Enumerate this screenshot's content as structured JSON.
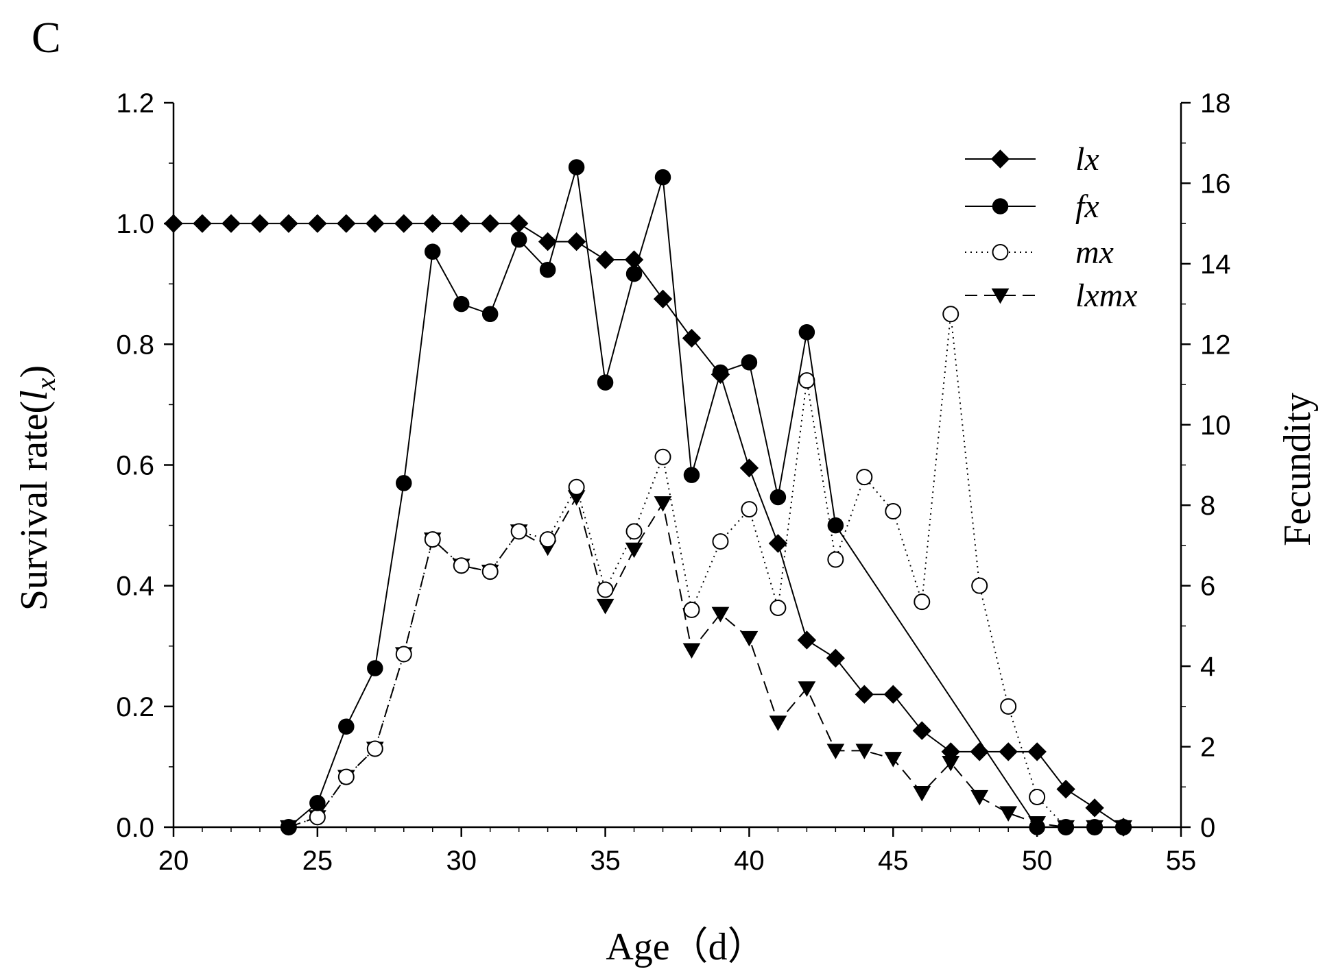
{
  "panel_label": "C",
  "chart_data": {
    "type": "line",
    "xlabel": "Age（d）",
    "ylabel_left": "Survival rate(",
    "ylabel_left_symbol": "l",
    "ylabel_left_sub": "x",
    "ylabel_left_close": ")",
    "ylabel_right": "Fecundity",
    "xlim": [
      20,
      55
    ],
    "ylim_left": [
      0,
      1.2
    ],
    "ylim_right": [
      0,
      18
    ],
    "xticks": [
      20,
      25,
      30,
      35,
      40,
      45,
      50,
      55
    ],
    "xtick_labels": [
      "20",
      "25",
      "30",
      "35",
      "40",
      "45",
      "50",
      "55"
    ],
    "yticks_left": [
      0,
      0.2,
      0.4,
      0.6,
      0.8,
      1.0,
      1.2
    ],
    "ytick_labels_left": [
      "0.0",
      "0.2",
      "0.4",
      "0.6",
      "0.8",
      "1.0",
      "1.2"
    ],
    "yticks_right": [
      0,
      2,
      4,
      6,
      8,
      10,
      12,
      14,
      16,
      18
    ],
    "ytick_labels_right": [
      "0",
      "2",
      "4",
      "6",
      "8",
      "10",
      "12",
      "14",
      "16",
      "18"
    ],
    "legend_position": "top-right",
    "series": [
      {
        "name": "lx",
        "axis": "left",
        "marker": "diamond",
        "line": "solid",
        "x": [
          20,
          21,
          22,
          23,
          24,
          25,
          26,
          27,
          28,
          29,
          30,
          31,
          32,
          33,
          34,
          35,
          36,
          37,
          38,
          39,
          40,
          41,
          42,
          43,
          44,
          45,
          46,
          47,
          48,
          49,
          50,
          51,
          52,
          53
        ],
        "values": [
          1,
          1,
          1,
          1,
          1,
          1,
          1,
          1,
          1,
          1,
          1,
          1,
          1,
          0.97,
          0.97,
          0.94,
          0.94,
          0.875,
          0.81,
          0.75,
          0.595,
          0.47,
          0.31,
          0.28,
          0.22,
          0.22,
          0.16,
          0.125,
          0.125,
          0.125,
          0.125,
          0.063,
          0.032,
          0
        ]
      },
      {
        "name": "fx",
        "axis": "right",
        "marker": "filled-circle",
        "line": "solid",
        "x": [
          24,
          25,
          26,
          27,
          28,
          29,
          30,
          31,
          32,
          33,
          34,
          35,
          36,
          37,
          38,
          39,
          40,
          41,
          42,
          43,
          50,
          51,
          52,
          53
        ],
        "values": [
          0,
          0.6,
          2.5,
          3.95,
          8.55,
          14.3,
          13,
          12.75,
          14.6,
          13.85,
          16.4,
          11.05,
          13.75,
          16.15,
          8.75,
          11.3,
          11.55,
          8.2,
          12.3,
          7.5,
          0,
          0,
          0,
          0
        ]
      },
      {
        "name": "mx",
        "axis": "right",
        "marker": "open-circle",
        "line": "dotted",
        "x": [
          24,
          25,
          26,
          27,
          28,
          29,
          30,
          31,
          32,
          33,
          34,
          35,
          36,
          37,
          38,
          39,
          40,
          41,
          42,
          43,
          44,
          45,
          46,
          47,
          48,
          49,
          50,
          51,
          52,
          53
        ],
        "values": [
          0,
          0.25,
          1.25,
          1.95,
          4.3,
          7.15,
          6.5,
          6.35,
          7.35,
          7.15,
          8.45,
          5.9,
          7.35,
          9.2,
          5.4,
          7.1,
          7.9,
          5.45,
          11.1,
          6.65,
          8.7,
          7.85,
          5.6,
          12.75,
          6,
          3,
          0.75,
          0,
          0,
          0
        ]
      },
      {
        "name": "lxmx",
        "axis": "right",
        "marker": "filled-triangle-down",
        "line": "dashed",
        "x": [
          24,
          25,
          26,
          27,
          28,
          29,
          30,
          31,
          32,
          33,
          34,
          35,
          36,
          37,
          38,
          39,
          40,
          41,
          42,
          43,
          44,
          45,
          46,
          47,
          48,
          49,
          50,
          51,
          52,
          53
        ],
        "values": [
          0,
          0.25,
          1.25,
          1.95,
          4.3,
          7.15,
          6.5,
          6.35,
          7.35,
          6.95,
          8.2,
          5.5,
          6.9,
          8.05,
          4.4,
          5.3,
          4.7,
          2.6,
          3.45,
          1.9,
          1.9,
          1.7,
          0.85,
          1.6,
          0.75,
          0.35,
          0.1,
          0,
          0,
          0
        ]
      }
    ]
  }
}
